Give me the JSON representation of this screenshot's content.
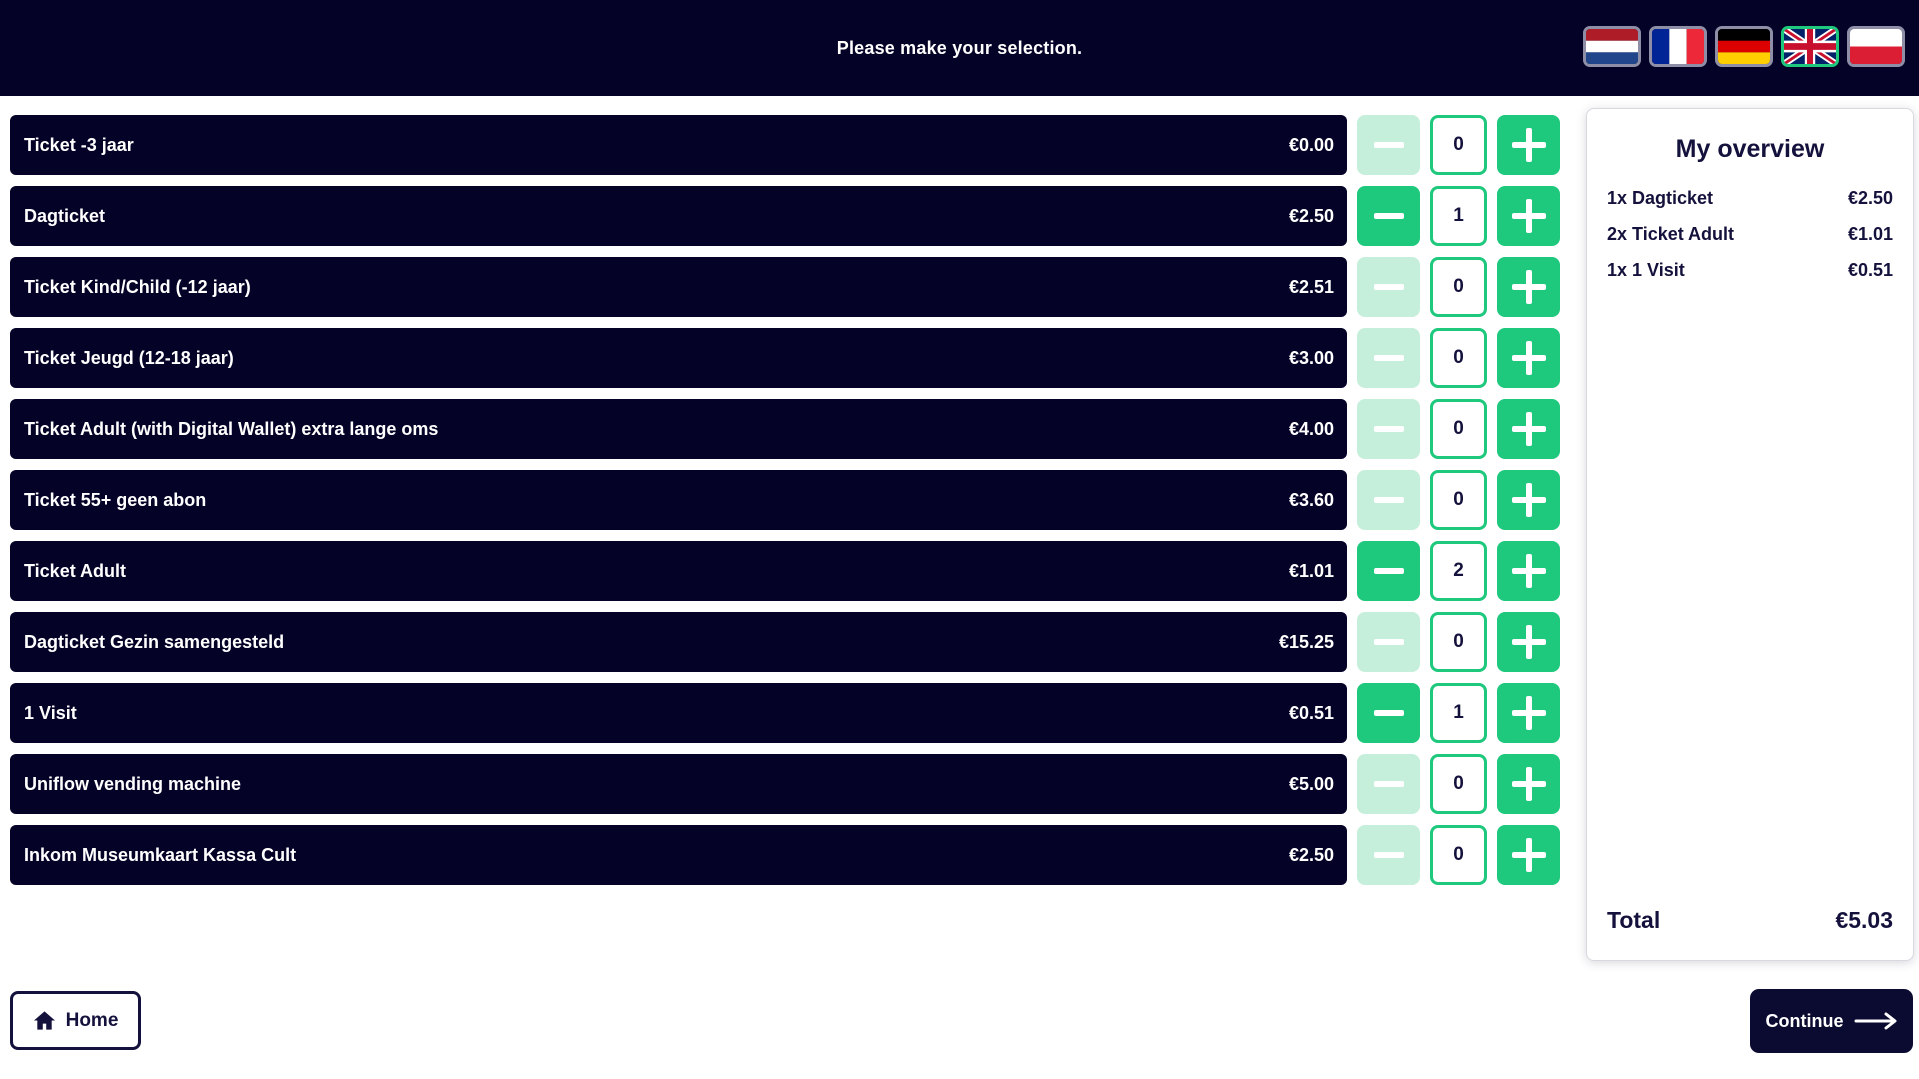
{
  "header": {
    "message": "Please make your selection.",
    "languages": [
      {
        "code": "nl",
        "name": "Dutch",
        "selected": false
      },
      {
        "code": "fr",
        "name": "French",
        "selected": false
      },
      {
        "code": "de",
        "name": "German",
        "selected": false
      },
      {
        "code": "gb",
        "name": "English",
        "selected": true
      },
      {
        "code": "pl",
        "name": "Polish",
        "selected": false
      }
    ]
  },
  "tickets": [
    {
      "name": "Ticket -3 jaar",
      "price": "€0.00",
      "qty": "0"
    },
    {
      "name": "Dagticket",
      "price": "€2.50",
      "qty": "1"
    },
    {
      "name": "Ticket Kind/Child (-12 jaar)",
      "price": "€2.51",
      "qty": "0"
    },
    {
      "name": "Ticket Jeugd (12-18 jaar)",
      "price": "€3.00",
      "qty": "0"
    },
    {
      "name": "Ticket Adult (with Digital Wallet) extra lange oms",
      "price": "€4.00",
      "qty": "0"
    },
    {
      "name": "Ticket 55+ geen abon",
      "price": "€3.60",
      "qty": "0"
    },
    {
      "name": "Ticket Adult",
      "price": "€1.01",
      "qty": "2"
    },
    {
      "name": "Dagticket Gezin samengesteld",
      "price": "€15.25",
      "qty": "0"
    },
    {
      "name": "1 Visit",
      "price": "€0.51",
      "qty": "1"
    },
    {
      "name": "Uniflow vending machine",
      "price": "€5.00",
      "qty": "0"
    },
    {
      "name": "Inkom Museumkaart Kassa Cult",
      "price": "€2.50",
      "qty": "0"
    }
  ],
  "overview": {
    "title": "My overview",
    "items": [
      {
        "label": "1x Dagticket",
        "price": "€2.50"
      },
      {
        "label": "2x Ticket Adult",
        "price": "€1.01"
      },
      {
        "label": "1x 1 Visit",
        "price": "€0.51"
      }
    ],
    "total_label": "Total",
    "total_value": "€5.03"
  },
  "footer": {
    "home_label": "Home",
    "continue_label": "Continue"
  },
  "icons": {
    "minus": "−",
    "plus": "+",
    "home": "⌂",
    "arrow_right": "⟶"
  },
  "colors": {
    "navy": "#040226",
    "text_navy": "#14123c",
    "green": "#1ec87c",
    "green_disabled": "#c6efdb",
    "flag_border": "#8e8ea6",
    "panel_border": "#d8d8e0"
  }
}
